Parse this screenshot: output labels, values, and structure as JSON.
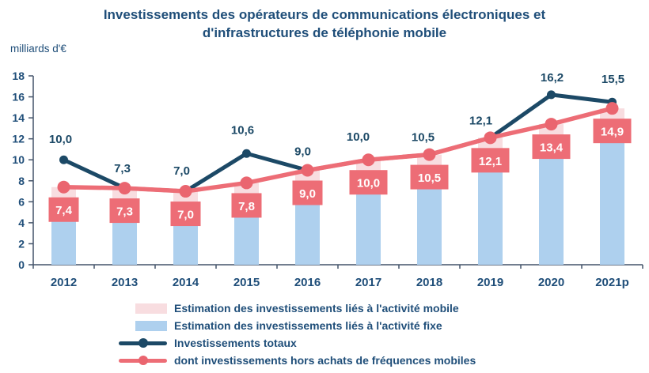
{
  "title": {
    "line1": "Investissements des opérateurs de communications électroniques et",
    "line2": "d'infrastructures de téléphonie mobile"
  },
  "y_axis_unit": "milliards d'€",
  "colors": {
    "title_navy": "#1f4e79",
    "axis": "#44546a",
    "total_line": "#1c4966",
    "hf_line": "#ed6d76",
    "hf_marker": "#ea656f",
    "bar_mobile_pink": "#f8dde0",
    "bar_fixe_blue": "#aed0ee",
    "hf_label_text": "#ffffff"
  },
  "chart_data": {
    "type": "combo-bar-line",
    "title": "Investissements des opérateurs de communications électroniques et d'infrastructures de téléphonie mobile",
    "ylabel": "milliards d'€",
    "ylim": [
      0,
      18
    ],
    "ytick_step": 2,
    "grid": false,
    "legend_position": "bottom",
    "categories": [
      "2012",
      "2013",
      "2014",
      "2015",
      "2016",
      "2017",
      "2018",
      "2019",
      "2020",
      "2021p"
    ],
    "series": [
      {
        "name": "Estimation des investissements liés à l'activité mobile",
        "type": "bar",
        "stack": "top",
        "color": "#f8dde0",
        "values": [
          2.5,
          2.5,
          2.4,
          2.5,
          2.5,
          2.5,
          2.5,
          2.5,
          2.5,
          2.5
        ],
        "note": "split boundary hidden behind value labels; estimated"
      },
      {
        "name": "Estimation des investissements liés à l'activité fixe",
        "type": "bar",
        "stack": "bottom",
        "color": "#aed0ee",
        "values": [
          4.9,
          4.8,
          4.6,
          5.3,
          6.5,
          7.5,
          8.0,
          9.6,
          10.9,
          12.4
        ],
        "note": "split boundary hidden behind value labels; estimated"
      },
      {
        "name": "Investissements totaux",
        "type": "line",
        "color": "#1c4966",
        "values": [
          10.0,
          7.3,
          7.0,
          10.6,
          9.0,
          10.0,
          10.5,
          12.1,
          16.2,
          15.5
        ],
        "labels": [
          "10,0",
          "7,3",
          "7,0",
          "10,6",
          "9,0",
          "10,0",
          "10,5",
          "12,1",
          "16,2",
          "15,5"
        ]
      },
      {
        "name": "dont investissements hors achats de fréquences mobiles",
        "type": "line",
        "color": "#ed6d76",
        "values": [
          7.4,
          7.3,
          7.0,
          7.8,
          9.0,
          10.0,
          10.5,
          12.1,
          13.4,
          14.9
        ],
        "labels": [
          "7,4",
          "7,3",
          "7,0",
          "7,8",
          "9,0",
          "10,0",
          "10,5",
          "12,1",
          "13,4",
          "14,9"
        ]
      }
    ]
  },
  "legend": {
    "items": [
      {
        "label": "Estimation des investissements liés à l'activité mobile",
        "swatch": "pink-rect",
        "color": "#f8dde0"
      },
      {
        "label": "Estimation des investissements liés à l'activité fixe",
        "swatch": "blue-rect",
        "color": "#aed0ee"
      },
      {
        "label": "Investissements totaux",
        "swatch": "navy-line-dot",
        "color": "#1c4966"
      },
      {
        "label": "dont investissements hors achats de fréquences mobiles",
        "swatch": "pink-line-dot",
        "color": "#ed6d76"
      }
    ]
  }
}
